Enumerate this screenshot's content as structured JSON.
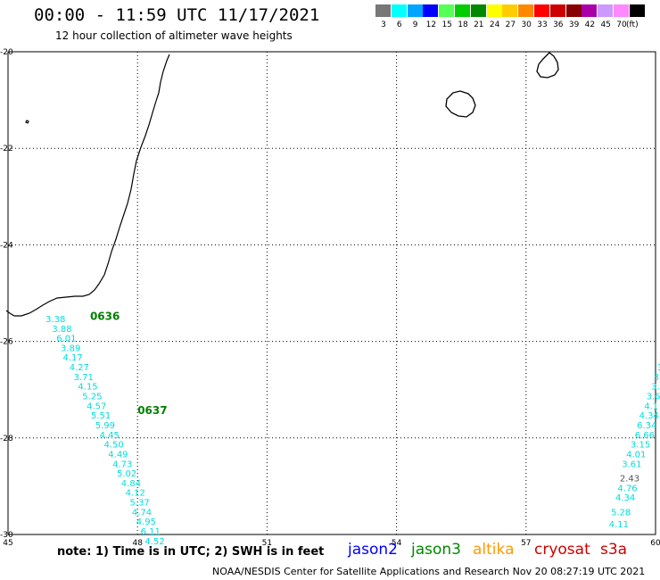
{
  "header": {
    "title": "00:00 - 11:59 UTC 11/17/2021",
    "subtitle": "12 hour collection of altimeter wave heights"
  },
  "legend": {
    "unit": "(ft)",
    "items": [
      {
        "label": "3",
        "color": "#777777"
      },
      {
        "label": "6",
        "color": "#00ffff"
      },
      {
        "label": "9",
        "color": "#00a5ff"
      },
      {
        "label": "12",
        "color": "#0000ff"
      },
      {
        "label": "15",
        "color": "#55ff55"
      },
      {
        "label": "18",
        "color": "#00cc00"
      },
      {
        "label": "21",
        "color": "#008800"
      },
      {
        "label": "24",
        "color": "#ffff00"
      },
      {
        "label": "27",
        "color": "#ffcc00"
      },
      {
        "label": "30",
        "color": "#ff8800"
      },
      {
        "label": "33",
        "color": "#ff0000"
      },
      {
        "label": "36",
        "color": "#cc0000"
      },
      {
        "label": "39",
        "color": "#880000"
      },
      {
        "label": "42",
        "color": "#aa00aa"
      },
      {
        "label": "45",
        "color": "#cc99ff"
      },
      {
        "label": "70",
        "color": "#ff88ff"
      },
      {
        "label": "",
        "color": "#000000"
      }
    ]
  },
  "map": {
    "lon_range": [
      45,
      60
    ],
    "lat_range": [
      -30,
      -20
    ],
    "lon_ticks": [
      "45",
      "48",
      "51",
      "54",
      "57",
      "60"
    ],
    "lat_ticks": [
      "-20",
      "-22",
      "-24",
      "-26",
      "-28",
      "-30"
    ],
    "grid_lines": "dotted"
  },
  "pass_labels": [
    {
      "text": "0636",
      "lon": 46.9,
      "lat": -25.55
    },
    {
      "text": "0637",
      "lon": 48.0,
      "lat": -27.5
    }
  ],
  "track_west": {
    "color": "#00dddd",
    "points": [
      {
        "v": "3.38",
        "lon": 46.1,
        "lat": -25.6
      },
      {
        "v": "3.88",
        "lon": 46.25,
        "lat": -25.8
      },
      {
        "v": "6.01",
        "lon": 46.35,
        "lat": -26.0
      },
      {
        "v": "3.89",
        "lon": 46.45,
        "lat": -26.2
      },
      {
        "v": "4.17",
        "lon": 46.5,
        "lat": -26.4
      },
      {
        "v": "4.27",
        "lon": 46.65,
        "lat": -26.6
      },
      {
        "v": "3.71",
        "lon": 46.75,
        "lat": -26.8
      },
      {
        "v": "4.15",
        "lon": 46.85,
        "lat": -27.0
      },
      {
        "v": "5.25",
        "lon": 46.95,
        "lat": -27.2
      },
      {
        "v": "4.57",
        "lon": 47.05,
        "lat": -27.4
      },
      {
        "v": "5.51",
        "lon": 47.15,
        "lat": -27.6
      },
      {
        "v": "5.99",
        "lon": 47.25,
        "lat": -27.8
      },
      {
        "v": "4.45",
        "lon": 47.35,
        "lat": -28.0
      },
      {
        "v": "4.50",
        "lon": 47.45,
        "lat": -28.2
      },
      {
        "v": "4.49",
        "lon": 47.55,
        "lat": -28.4
      },
      {
        "v": "4.73",
        "lon": 47.65,
        "lat": -28.6
      },
      {
        "v": "5.02",
        "lon": 47.75,
        "lat": -28.8
      },
      {
        "v": "4.84",
        "lon": 47.85,
        "lat": -29.0
      },
      {
        "v": "4.12",
        "lon": 47.95,
        "lat": -29.2
      },
      {
        "v": "5.37",
        "lon": 48.05,
        "lat": -29.4
      },
      {
        "v": "4.74",
        "lon": 48.1,
        "lat": -29.6
      },
      {
        "v": "4.95",
        "lon": 48.2,
        "lat": -29.8
      },
      {
        "v": "6.11",
        "lon": 48.3,
        "lat": -30.0
      },
      {
        "v": "4.52",
        "lon": 48.4,
        "lat": -30.2
      }
    ]
  },
  "track_east": {
    "color": "#00dddd",
    "points": [
      {
        "v": "3",
        "lon": 60.15,
        "lat": -26.4
      },
      {
        "v": "3",
        "lon": 60.1,
        "lat": -26.6
      },
      {
        "v": "3.",
        "lon": 60.05,
        "lat": -26.8
      },
      {
        "v": "3.",
        "lon": 60.0,
        "lat": -27.0
      },
      {
        "v": "3.6",
        "lon": 59.95,
        "lat": -27.2
      },
      {
        "v": "4.1",
        "lon": 59.9,
        "lat": -27.4
      },
      {
        "v": "4.34",
        "lon": 59.85,
        "lat": -27.6
      },
      {
        "v": "6.34",
        "lon": 59.8,
        "lat": -27.8
      },
      {
        "v": "6.66",
        "lon": 59.75,
        "lat": -28.0
      },
      {
        "v": "3.15",
        "lon": 59.65,
        "lat": -28.2
      },
      {
        "v": "4.01",
        "lon": 59.55,
        "lat": -28.4
      },
      {
        "v": "3.61",
        "lon": 59.45,
        "lat": -28.6
      },
      {
        "v": "2.43",
        "lon": 59.4,
        "lat": -28.9,
        "color": "#555555"
      },
      {
        "v": "4.76",
        "lon": 59.35,
        "lat": -29.1
      },
      {
        "v": "4.34",
        "lon": 59.3,
        "lat": -29.3
      },
      {
        "v": "5.28",
        "lon": 59.2,
        "lat": -29.6
      },
      {
        "v": "4.11",
        "lon": 59.15,
        "lat": -29.85
      }
    ]
  },
  "footer": {
    "note": "note:  1) Time is in UTC;  2) SWH is in feet",
    "credit": "NOAA/NESDIS Center for Satellite Applications and Research     Nov 20 08:27:19 UTC 2021",
    "satellites": [
      {
        "name": "jason2",
        "color": "#0000ff"
      },
      {
        "name": "jason3",
        "color": "#008800"
      },
      {
        "name": "altika",
        "color": "#ff9900"
      },
      {
        "name": "cryosat",
        "color": "#cc0000"
      },
      {
        "name": "s3a",
        "color": "#cc0000"
      }
    ]
  }
}
